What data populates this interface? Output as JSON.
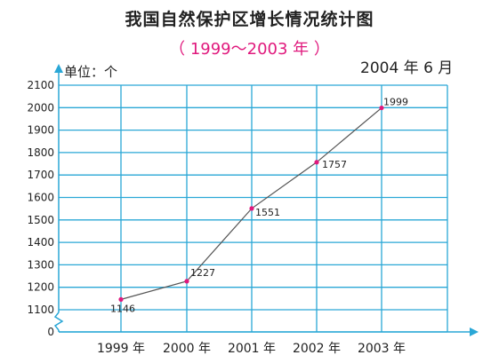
{
  "title": "我国自然保护区增长情况统计图",
  "subtitle": "（ 1999～2003 年 ）",
  "date_label": "2004 年 6 月",
  "unit_label": "单位：个",
  "colors": {
    "grid": "#2aa7d6",
    "line": "#555555",
    "point": "#e0197d",
    "text": "#222222"
  },
  "chart_data": {
    "type": "line",
    "categories": [
      "1999 年",
      "2000 年",
      "2001 年",
      "2002 年",
      "2003 年"
    ],
    "values": [
      1146,
      1227,
      1551,
      1757,
      1999
    ],
    "data_labels": [
      "1146",
      "1227",
      "1551",
      "1757",
      "1999"
    ],
    "y_ticks": [
      "0",
      "1100",
      "1200",
      "1300",
      "1400",
      "1500",
      "1600",
      "1700",
      "1800",
      "1900",
      "2000",
      "2100"
    ],
    "ylim": [
      1100,
      2100
    ],
    "y_axis_break": true,
    "grid": true
  }
}
